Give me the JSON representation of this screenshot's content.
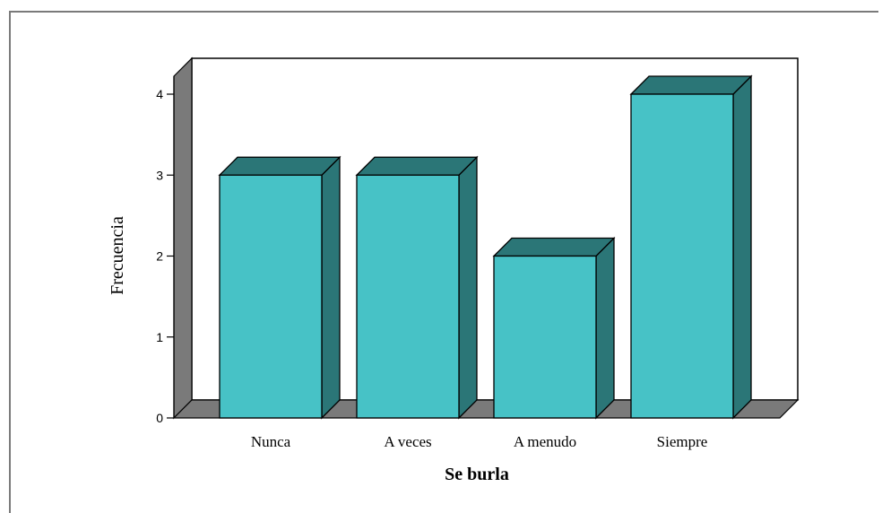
{
  "chart_data": {
    "type": "bar",
    "categories": [
      "Nunca",
      "A veces",
      "A menudo",
      "Siempre"
    ],
    "values": [
      3,
      3,
      2,
      4
    ],
    "xlabel": "Se burla",
    "ylabel": "Frecuencia",
    "ylim": [
      0,
      4
    ],
    "yticks": [
      "0",
      "1",
      "2",
      "3",
      "4"
    ],
    "grid": false,
    "legend": "none",
    "style": "3d-bars"
  },
  "colors": {
    "bar_front": "#47c2c6",
    "bar_side": "#2b7677",
    "bar_top": "#2b7677",
    "wall": "#7a7a7a",
    "floor": "#7a7a7a",
    "frame": "#7a7a7a"
  }
}
